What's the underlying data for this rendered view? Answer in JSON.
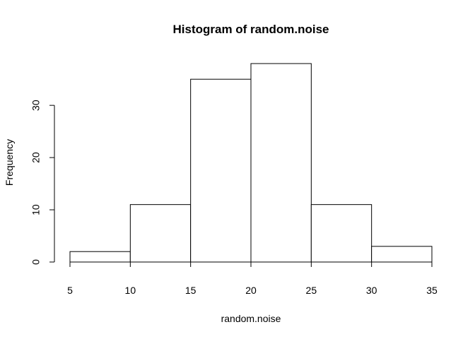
{
  "chart_data": {
    "type": "bar",
    "title": "Histogram of random.noise",
    "xlabel": "random.noise",
    "ylabel": "Frequency",
    "bins": [
      {
        "from": 5,
        "to": 10,
        "count": 2
      },
      {
        "from": 10,
        "to": 15,
        "count": 11
      },
      {
        "from": 15,
        "to": 20,
        "count": 35
      },
      {
        "from": 20,
        "to": 25,
        "count": 38
      },
      {
        "from": 25,
        "to": 30,
        "count": 11
      },
      {
        "from": 30,
        "to": 35,
        "count": 3
      }
    ],
    "xlim": [
      5,
      35
    ],
    "ylim": [
      0,
      38
    ],
    "x_ticks": [
      5,
      10,
      15,
      20,
      25,
      30,
      35
    ],
    "y_ticks": [
      0,
      10,
      20,
      30
    ],
    "grid": false,
    "bar_fill": "#ffffff",
    "bar_stroke": "#000000"
  }
}
